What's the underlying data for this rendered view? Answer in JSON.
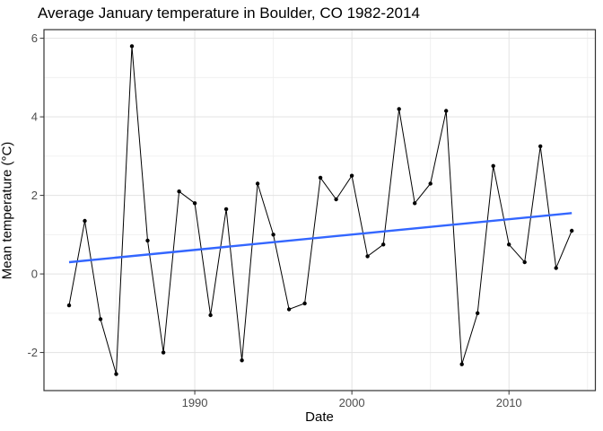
{
  "chart_data": {
    "type": "line",
    "title": "Average January temperature in Boulder, CO 1982-2014",
    "xlabel": "Date",
    "ylabel": "Mean temperature (°C)",
    "x": [
      1982,
      1983,
      1984,
      1985,
      1986,
      1987,
      1988,
      1989,
      1990,
      1991,
      1992,
      1993,
      1994,
      1995,
      1996,
      1997,
      1998,
      1999,
      2000,
      2001,
      2002,
      2003,
      2004,
      2005,
      2006,
      2007,
      2008,
      2009,
      2010,
      2011,
      2012,
      2013,
      2014
    ],
    "series": [
      {
        "name": "observed-temperature",
        "style": "line-with-points",
        "color": "#000000",
        "values": [
          -0.8,
          1.35,
          -1.15,
          -2.55,
          5.8,
          0.85,
          -2.0,
          2.1,
          1.8,
          -1.05,
          1.65,
          -2.2,
          2.3,
          1.0,
          -0.9,
          -0.75,
          2.45,
          1.9,
          2.5,
          0.45,
          0.75,
          4.2,
          1.8,
          2.3,
          4.15,
          -2.3,
          -1.0,
          2.75,
          0.75,
          0.3,
          3.25,
          0.15,
          1.1
        ]
      },
      {
        "name": "linear-trend",
        "style": "line",
        "color": "#3366FF",
        "x": [
          1982,
          2014
        ],
        "values": [
          0.3,
          1.55
        ]
      }
    ],
    "xlim": [
      1980.4,
      2015.5
    ],
    "ylim": [
      -2.97,
      6.22
    ],
    "x_ticks": [
      1990,
      2000,
      2010
    ],
    "x_minor_gridlines": [
      1985,
      1995,
      2005,
      2015
    ],
    "y_ticks": [
      -2,
      0,
      2,
      4,
      6
    ],
    "y_minor_gridlines": [
      -1,
      1,
      3,
      5
    ],
    "grid": "on",
    "legend": "none",
    "colors": {
      "panel_background": "#ffffff",
      "panel_border": "#333333",
      "grid_major": "#e3e3e3",
      "grid_minor": "#f0f0f0",
      "tick_mark": "#333333",
      "tick_label": "#4d4d4d",
      "data_line": "#000000",
      "data_point": "#000000",
      "trend_line": "#3366FF"
    }
  }
}
